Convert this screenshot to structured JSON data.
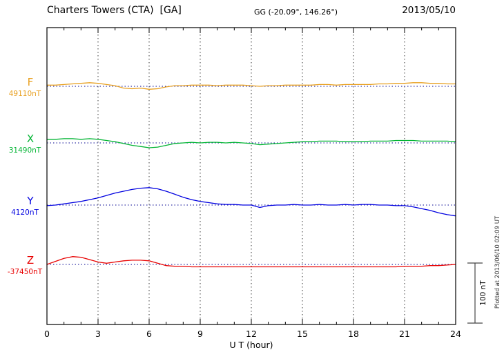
{
  "header": {
    "station": "Charters Towers (CTA)  [GA]",
    "coords": "GG (-20.09°, 146.26°)",
    "date": "2013/05/10"
  },
  "chart_data": {
    "type": "line",
    "title": "Charters Towers (CTA) [GA] magnetogram 2013/05/10",
    "xlabel": "U T (hour)",
    "xlim": [
      0,
      24
    ],
    "x_ticks": [
      0,
      3,
      6,
      9,
      12,
      15,
      18,
      21,
      24
    ],
    "grid_hours": [
      3,
      6,
      9,
      12,
      15,
      18,
      21
    ],
    "x_step_hours": 0.5,
    "scale_bar_label": "100 nT",
    "scale_bar_nT": 100,
    "baseline_style": "dotted-navy",
    "grid_style": "dotted-black",
    "series": [
      {
        "name": "F",
        "baseline_label": "49110nT",
        "color": "#e8a020",
        "values": [
          2,
          2,
          3,
          4,
          5,
          6,
          5,
          3,
          1,
          -3,
          -4,
          -3,
          -5,
          -4,
          -1,
          1,
          1,
          2,
          2,
          2,
          1,
          2,
          2,
          2,
          1,
          0,
          1,
          1,
          2,
          2,
          2,
          2,
          3,
          3,
          2,
          3,
          3,
          3,
          3,
          4,
          4,
          5,
          5,
          6,
          6,
          5,
          5,
          4,
          4
        ]
      },
      {
        "name": "X",
        "baseline_label": "31490nT",
        "color": "#00b432",
        "values": [
          6,
          6,
          7,
          7,
          6,
          7,
          6,
          4,
          2,
          -1,
          -4,
          -6,
          -8,
          -7,
          -4,
          -1,
          0,
          1,
          0,
          1,
          1,
          0,
          1,
          0,
          -1,
          -3,
          -2,
          -1,
          0,
          1,
          2,
          2,
          3,
          3,
          3,
          2,
          2,
          2,
          3,
          3,
          3,
          4,
          4,
          4,
          3,
          3,
          3,
          3,
          2
        ]
      },
      {
        "name": "Y",
        "baseline_label": "4120nT",
        "color": "#0000e0",
        "values": [
          -1,
          0,
          2,
          4,
          6,
          9,
          12,
          16,
          20,
          23,
          26,
          28,
          29,
          27,
          23,
          18,
          13,
          9,
          6,
          4,
          2,
          1,
          1,
          0,
          0,
          -4,
          -1,
          0,
          0,
          1,
          0,
          0,
          1,
          0,
          0,
          1,
          0,
          1,
          1,
          0,
          0,
          -1,
          -1,
          -3,
          -6,
          -9,
          -13,
          -16,
          -18
        ]
      },
      {
        "name": "Z",
        "baseline_label": "-37450nT",
        "color": "#e80000",
        "values": [
          0,
          5,
          10,
          13,
          12,
          8,
          4,
          2,
          4,
          6,
          7,
          7,
          6,
          2,
          -2,
          -3,
          -3,
          -4,
          -4,
          -4,
          -4,
          -4,
          -4,
          -4,
          -4,
          -4,
          -4,
          -4,
          -4,
          -4,
          -4,
          -4,
          -4,
          -4,
          -4,
          -4,
          -4,
          -4,
          -4,
          -4,
          -4,
          -4,
          -3,
          -3,
          -3,
          -2,
          -2,
          -1,
          0
        ]
      }
    ]
  },
  "side_note": {
    "plotted_at": "Plotted at 2013/06/10 02:09 UT"
  }
}
